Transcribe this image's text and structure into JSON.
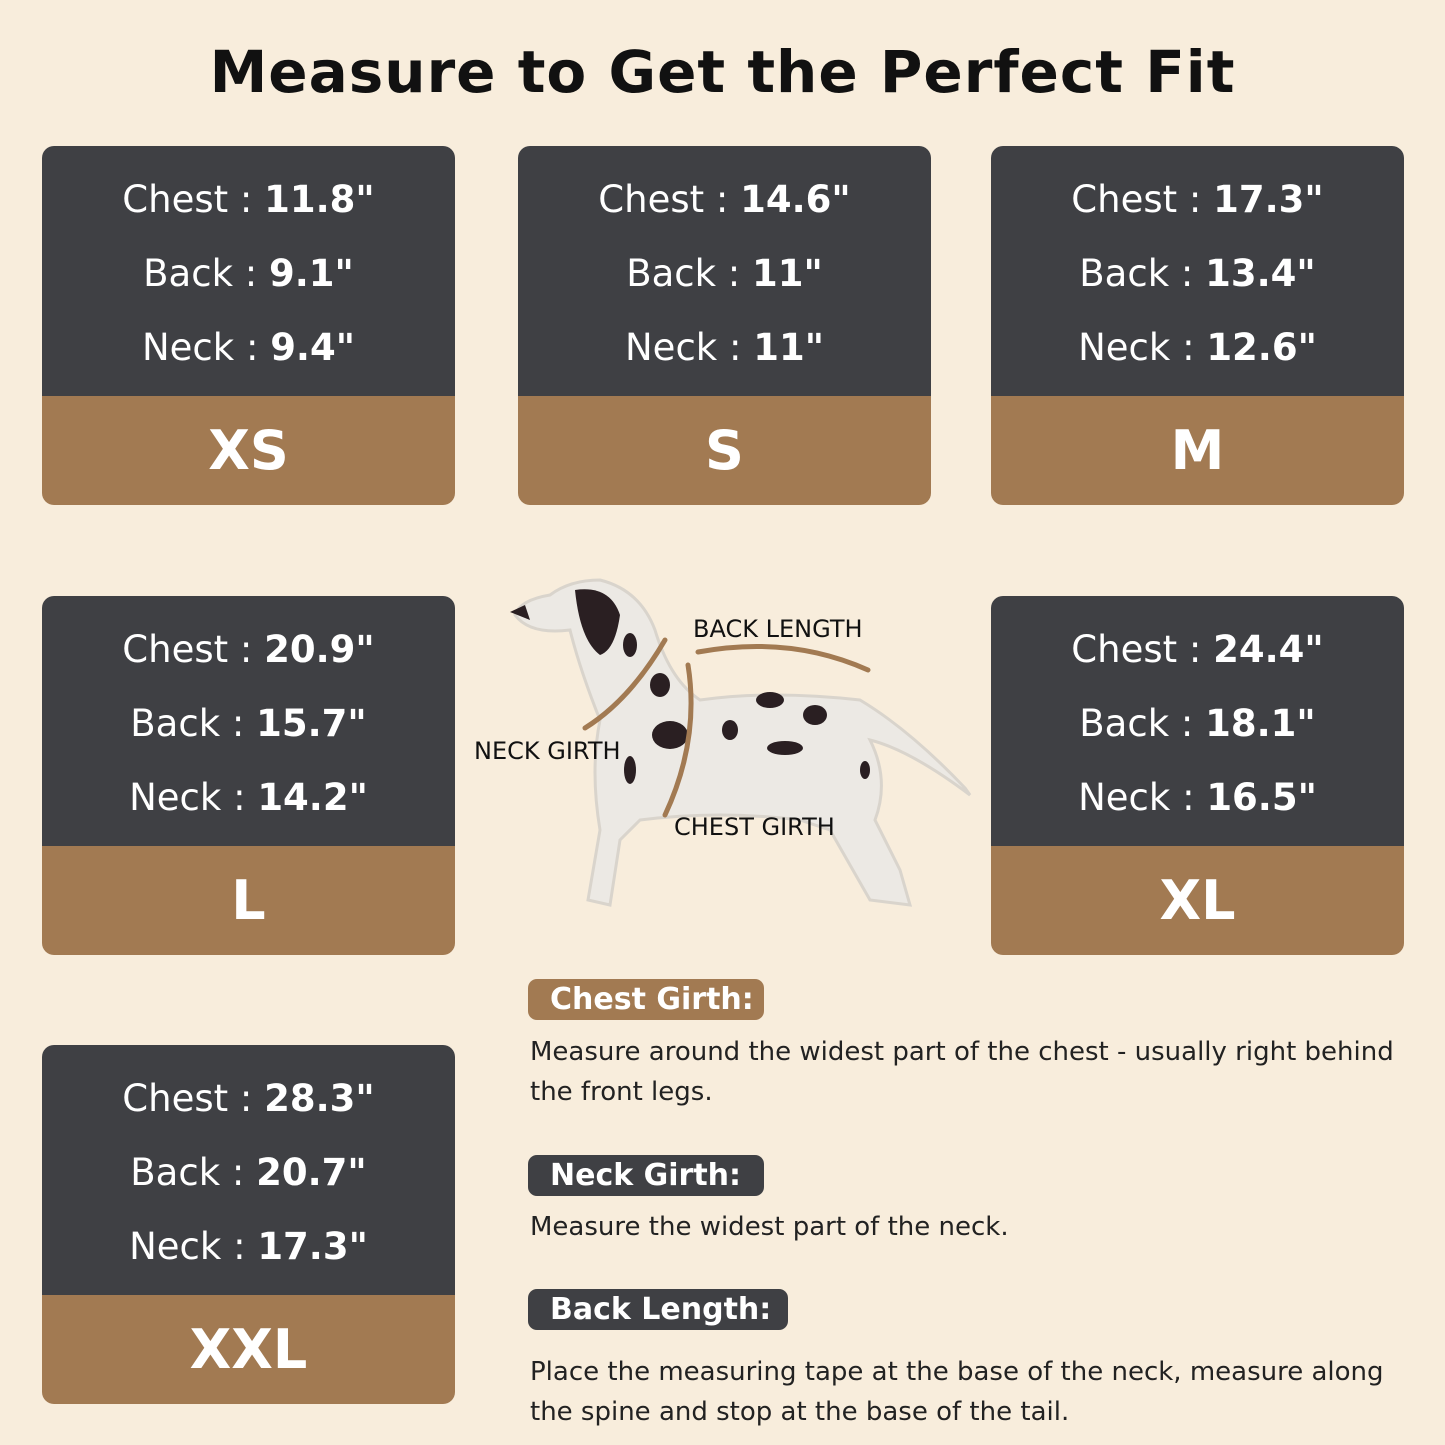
{
  "title": "Measure to Get the Perfect Fit",
  "labels": {
    "chest": "Chest",
    "back": "Back",
    "neck": "Neck",
    "separator": " : "
  },
  "sizes": [
    {
      "size": "XS",
      "chest": "11.8\"",
      "back": "9.1\"",
      "neck": "9.4\""
    },
    {
      "size": "S",
      "chest": "14.6\"",
      "back": "11\"",
      "neck": "11\""
    },
    {
      "size": "M",
      "chest": "17.3\"",
      "back": "13.4\"",
      "neck": "12.6\""
    },
    {
      "size": "L",
      "chest": "20.9\"",
      "back": "15.7\"",
      "neck": "14.2\""
    },
    {
      "size": "XL",
      "chest": "24.4\"",
      "back": "18.1\"",
      "neck": "16.5\""
    },
    {
      "size": "XXL",
      "chest": "28.3\"",
      "back": "20.7\"",
      "neck": "17.3\""
    }
  ],
  "diagram": {
    "back_length": "BACK LENGTH",
    "neck_girth": "NECK GIRTH",
    "chest_girth": "CHEST GIRTH"
  },
  "instructions": [
    {
      "heading": "Chest Girth:",
      "text": "Measure around the widest part of the chest - usually right behind the front legs."
    },
    {
      "heading": "Neck Girth:",
      "text": "Measure the widest part of the neck."
    },
    {
      "heading": "Back Length:",
      "text": "Place the measuring tape at the base of the neck, measure along the spine and stop at the base of the tail."
    }
  ],
  "colors": {
    "background": "#f8eddc",
    "card_dark": "#3f4044",
    "accent_tan": "#a27a52"
  }
}
